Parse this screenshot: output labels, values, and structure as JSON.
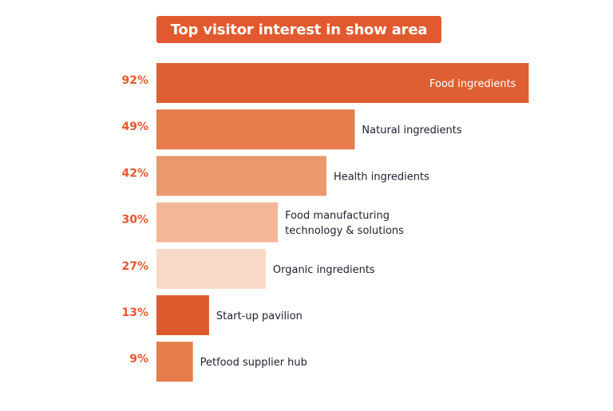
{
  "chart_data": {
    "type": "bar",
    "orientation": "horizontal",
    "title": "Top visitor interest in show area",
    "value_suffix": "%",
    "xlim": [
      0,
      100
    ],
    "grid": false,
    "legend": "none",
    "categories": [
      [
        "Food ingredients"
      ],
      [
        "Natural ingredients"
      ],
      [
        "Health ingredients"
      ],
      [
        "Food manufacturing",
        "technology & solutions"
      ],
      [
        "Organic ingredients"
      ],
      [
        "Start-up pavilion"
      ],
      [
        "Petfood supplier hub"
      ]
    ],
    "values": [
      92,
      49,
      42,
      30,
      27,
      13,
      9
    ],
    "data_labels": [
      "92%",
      "49%",
      "42%",
      "30%",
      "27%",
      "13%",
      "9%"
    ],
    "colors": [
      "#DE5F34",
      "#E57C4A",
      "#EA986D",
      "#F2B798",
      "#F8D9C7",
      "#DD5A2C",
      "#E57C4A"
    ],
    "label_colors": [
      "#ffffff",
      "#1f1f2e",
      "#1f1f2e",
      "#1f1f2e",
      "#1f1f2e",
      "#1f1f2e",
      "#1f1f2e"
    ],
    "percent_label_color": "#E2592F",
    "title_background": "#E2592F"
  }
}
